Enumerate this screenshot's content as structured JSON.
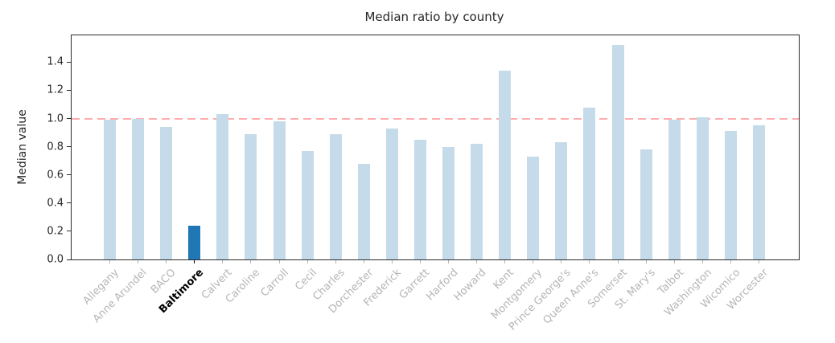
{
  "chart_data": {
    "type": "bar",
    "title": "Median ratio by county",
    "ylabel": "Median value",
    "xlabel": "",
    "categories": [
      "Allegany",
      "Anne Arundel",
      "BACO",
      "Baltimore",
      "Calvert",
      "Caroline",
      "Carroll",
      "Cecil",
      "Charles",
      "Dorchester",
      "Frederick",
      "Garrett",
      "Harford",
      "Howard",
      "Kent",
      "Montgomery",
      "Prince George's",
      "Queen Anne's",
      "Somerset",
      "St. Mary's",
      "Talbot",
      "Washington",
      "Wicomico",
      "Worcester"
    ],
    "values": [
      0.99,
      1.0,
      0.94,
      0.24,
      1.03,
      0.89,
      0.98,
      0.77,
      0.89,
      0.68,
      0.93,
      0.85,
      0.8,
      0.82,
      1.34,
      0.73,
      0.83,
      1.08,
      1.52,
      0.78,
      0.99,
      1.01,
      0.91,
      0.95
    ],
    "highlight_category": "Baltimore",
    "highlight_index": 3,
    "reference_line": {
      "y": 1.0,
      "style": "dashed"
    },
    "ylim": [
      0.0,
      1.59
    ],
    "yticks": [
      "0.0",
      "0.2",
      "0.4",
      "0.6",
      "0.8",
      "1.0",
      "1.2",
      "1.4"
    ],
    "grid": false,
    "legend": "none",
    "x_tick_rotation_deg": 45,
    "colors": {
      "bar": "#c5dbea",
      "highlight_bar": "#1f77b4",
      "reference_line": "#ffacac",
      "axis": "#2b2b2b",
      "ytick_label": "#262626",
      "category_label": "#b5b5b5",
      "highlight_category_label": "#000000",
      "background": "#ffffff"
    }
  }
}
